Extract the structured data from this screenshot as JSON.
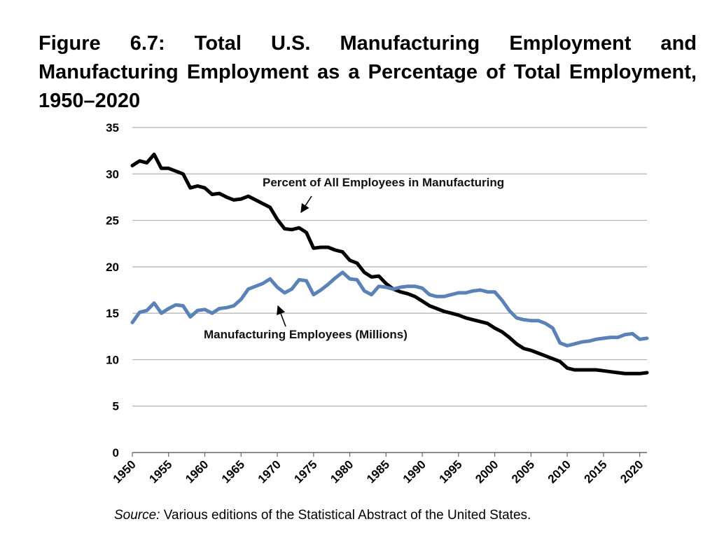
{
  "figure": {
    "title": "Figure 6.7: Total U.S. Manufacturing Employment and Manufacturing Employment as a Percentage of Total Employment, 1950–2020",
    "source_label": "Source:",
    "source_text": " Various editions of the Statistical Abstract of the United States."
  },
  "chart_data": {
    "type": "line",
    "title": "Figure 6.7: Total U.S. Manufacturing Employment and Manufacturing Employment as a Percentage of Total Employment, 1950–2020",
    "xlabel": "",
    "ylabel": "",
    "xlim": [
      1950,
      2021
    ],
    "ylim": [
      0,
      35
    ],
    "grid": true,
    "y_ticks": [
      "0",
      "5",
      "10",
      "15",
      "20",
      "25",
      "30",
      "35"
    ],
    "x_ticks": [
      "1950",
      "1955",
      "1960",
      "1965",
      "1970",
      "1975",
      "1980",
      "1985",
      "1990",
      "1995",
      "2000",
      "2005",
      "2010",
      "2015",
      "2020"
    ],
    "series": [
      {
        "name": "Percent of All Employees in Manufacturing",
        "color": "#000000",
        "x": [
          1950,
          1951,
          1952,
          1953,
          1954,
          1955,
          1956,
          1957,
          1958,
          1959,
          1960,
          1961,
          1962,
          1963,
          1964,
          1965,
          1966,
          1967,
          1968,
          1969,
          1970,
          1971,
          1972,
          1973,
          1974,
          1975,
          1976,
          1977,
          1978,
          1979,
          1980,
          1981,
          1982,
          1983,
          1984,
          1985,
          1986,
          1987,
          1988,
          1989,
          1990,
          1991,
          1992,
          1993,
          1994,
          1995,
          1996,
          1997,
          1998,
          1999,
          2000,
          2001,
          2002,
          2003,
          2004,
          2005,
          2006,
          2007,
          2008,
          2009,
          2010,
          2011,
          2012,
          2013,
          2014,
          2015,
          2016,
          2017,
          2018,
          2019,
          2020,
          2021
        ],
        "values": [
          30.9,
          31.4,
          31.2,
          32.1,
          30.6,
          30.6,
          30.3,
          30.0,
          28.5,
          28.7,
          28.5,
          27.8,
          27.9,
          27.5,
          27.2,
          27.3,
          27.6,
          27.2,
          26.8,
          26.4,
          25.1,
          24.1,
          24.0,
          24.2,
          23.7,
          22.0,
          22.1,
          22.1,
          21.8,
          21.6,
          20.7,
          20.4,
          19.4,
          18.9,
          19.0,
          18.2,
          17.6,
          17.3,
          17.1,
          16.8,
          16.3,
          15.8,
          15.5,
          15.2,
          15.0,
          14.8,
          14.5,
          14.3,
          14.1,
          13.9,
          13.4,
          13.0,
          12.4,
          11.7,
          11.2,
          11.0,
          10.7,
          10.4,
          10.1,
          9.8,
          9.1,
          8.9,
          8.9,
          8.9,
          8.9,
          8.8,
          8.7,
          8.6,
          8.5,
          8.5,
          8.5,
          8.6
        ]
      },
      {
        "name": "Manufacturing Employees (Millions)",
        "color": "#5b82b6",
        "x": [
          1950,
          1951,
          1952,
          1953,
          1954,
          1955,
          1956,
          1957,
          1958,
          1959,
          1960,
          1961,
          1962,
          1963,
          1964,
          1965,
          1966,
          1967,
          1968,
          1969,
          1970,
          1971,
          1972,
          1973,
          1974,
          1975,
          1976,
          1977,
          1978,
          1979,
          1980,
          1981,
          1982,
          1983,
          1984,
          1985,
          1986,
          1987,
          1988,
          1989,
          1990,
          1991,
          1992,
          1993,
          1994,
          1995,
          1996,
          1997,
          1998,
          1999,
          2000,
          2001,
          2002,
          2003,
          2004,
          2005,
          2006,
          2007,
          2008,
          2009,
          2010,
          2011,
          2012,
          2013,
          2014,
          2015,
          2016,
          2017,
          2018,
          2019,
          2020,
          2021
        ],
        "values": [
          14.0,
          15.1,
          15.3,
          16.1,
          15.0,
          15.5,
          15.9,
          15.8,
          14.6,
          15.3,
          15.4,
          15.0,
          15.5,
          15.6,
          15.8,
          16.5,
          17.6,
          17.9,
          18.2,
          18.7,
          17.8,
          17.2,
          17.6,
          18.6,
          18.5,
          17.0,
          17.5,
          18.1,
          18.8,
          19.4,
          18.7,
          18.6,
          17.4,
          17.0,
          17.9,
          17.8,
          17.6,
          17.8,
          17.9,
          17.9,
          17.7,
          17.0,
          16.8,
          16.8,
          17.0,
          17.2,
          17.2,
          17.4,
          17.5,
          17.3,
          17.3,
          16.4,
          15.3,
          14.5,
          14.3,
          14.2,
          14.2,
          13.9,
          13.4,
          11.8,
          11.5,
          11.7,
          11.9,
          12.0,
          12.2,
          12.3,
          12.4,
          12.4,
          12.7,
          12.8,
          12.2,
          12.3
        ]
      }
    ],
    "annotations": [
      {
        "text": "Percent of All Employees in Manufacturing",
        "series": 0,
        "points_to_year": 1973
      },
      {
        "text": "Manufacturing Employees (Millions)",
        "series": 1,
        "points_to_year": 1969
      }
    ]
  }
}
